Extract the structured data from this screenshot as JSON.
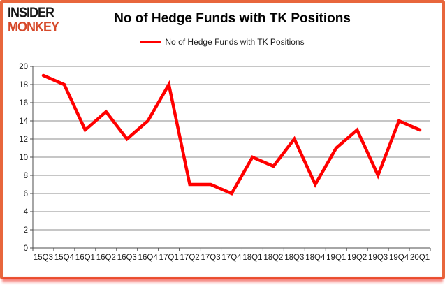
{
  "header": {
    "logo_line1": "INSIDER",
    "logo_line2": "MONKEY",
    "title": "No of Hedge Funds with TK Positions"
  },
  "legend": {
    "label": "No of Hedge Funds with TK Positions"
  },
  "chart_data": {
    "type": "line",
    "title": "No of Hedge Funds with TK Positions",
    "categories": [
      "15Q3",
      "15Q4",
      "16Q1",
      "16Q2",
      "16Q3",
      "16Q4",
      "17Q1",
      "17Q2",
      "17Q3",
      "17Q4",
      "18Q1",
      "18Q2",
      "18Q3",
      "18Q4",
      "19Q1",
      "19Q2",
      "19Q3",
      "19Q4",
      "20Q1"
    ],
    "series": [
      {
        "name": "No of Hedge Funds with TK Positions",
        "color": "#ff0000",
        "values": [
          19,
          18,
          13,
          15,
          12,
          14,
          18,
          7,
          7,
          6,
          10,
          9,
          12,
          7,
          11,
          13,
          8,
          14,
          13
        ]
      }
    ],
    "xlabel": "",
    "ylabel": "",
    "ylim": [
      0,
      20
    ],
    "ytick_step": 2,
    "grid": true,
    "legend_position": "top"
  },
  "colors": {
    "frame_border": "#e8663c",
    "bottom_glow": "#ee281e",
    "gridline": "#8c8c8c",
    "axis": "#4d4d4d",
    "tick_label": "#1a1a1a",
    "series_line": "#ff0000",
    "logo_black": "#161616",
    "logo_red": "#d6492a"
  }
}
